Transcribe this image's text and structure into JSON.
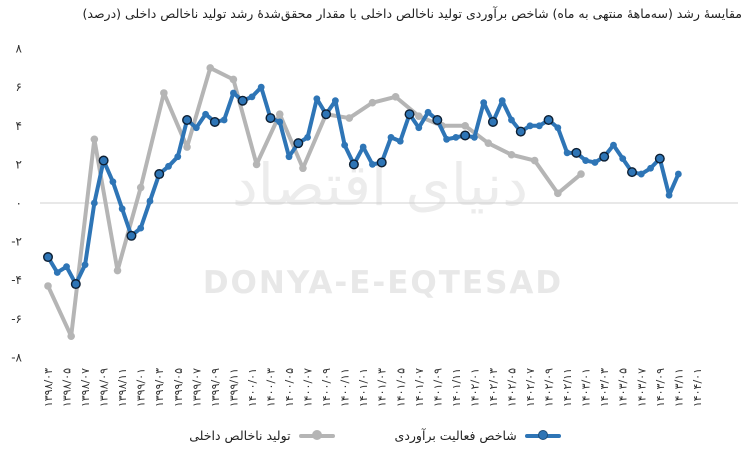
{
  "chart_data": {
    "type": "line",
    "title": "مقایسهٔ رشد (سه‌ماههٔ منتهی به ماه) شاخص برآوردی تولید ناخالص داخلی با مقدار محقق‌شدهٔ رشد تولید ناخالص داخلی (درصد)",
    "watermark": "DONYA-E-EQTESAD",
    "watermark_fa": "دنیای اقتصاد",
    "ylim": [
      -8,
      8
    ],
    "yticks": [
      -8,
      -6,
      -4,
      -2,
      0,
      2,
      4,
      6,
      8
    ],
    "ytick_labels": [
      "-۸",
      "-۶",
      "-۴",
      "-۲",
      "۰",
      "۲",
      "۴",
      "۶",
      "۸"
    ],
    "x_labels": [
      "۱۳۹۸/۰۳",
      "۱۳۹۸/۰۵",
      "۱۳۹۸/۰۷",
      "۱۳۹۸/۰۹",
      "۱۳۹۸/۱۱",
      "۱۳۹۹/۰۱",
      "۱۳۹۹/۰۳",
      "۱۳۹۹/۰۵",
      "۱۳۹۹/۰۷",
      "۱۳۹۹/۰۹",
      "۱۳۹۹/۱۱",
      "۱۴۰۰/۰۱",
      "۱۴۰۰/۰۳",
      "۱۴۰۰/۰۵",
      "۱۴۰۰/۰۷",
      "۱۴۰۰/۰۹",
      "۱۴۰۰/۱۱",
      "۱۴۰۱/۰۱",
      "۱۴۰۱/۰۳",
      "۱۴۰۱/۰۵",
      "۱۴۰۱/۰۷",
      "۱۴۰۱/۰۹",
      "۱۴۰۱/۱۱",
      "۱۴۰۲/۰۱",
      "۱۴۰۲/۰۳",
      "۱۴۰۲/۰۵",
      "۱۴۰۲/۰۷",
      "۱۴۰۲/۰۹",
      "۱۴۰۲/۱۱",
      "۱۴۰۳/۰۱",
      "۱۴۰۳/۰۳",
      "۱۴۰۳/۰۵",
      "۱۴۰۳/۰۷",
      "۱۴۰۳/۰۹",
      "۱۴۰۳/۱۱",
      "۱۴۰۴/۰۱"
    ],
    "series": [
      {
        "name": "تولید ناخالص داخلی",
        "color": "#b5b5b5",
        "points": [
          [
            0,
            -4.3
          ],
          [
            2.5,
            -6.9
          ],
          [
            5,
            3.3
          ],
          [
            7.5,
            -3.5
          ],
          [
            10,
            0.8
          ],
          [
            12.5,
            5.7
          ],
          [
            15,
            2.9
          ],
          [
            17.5,
            7
          ],
          [
            20,
            6.4
          ],
          [
            22.5,
            2
          ],
          [
            25,
            4.6
          ],
          [
            27.5,
            1.8
          ],
          [
            30,
            4.6
          ],
          [
            32.5,
            4.4
          ],
          [
            35,
            5.2
          ],
          [
            37.5,
            5.5
          ],
          [
            40,
            4.5
          ],
          [
            42.5,
            4
          ],
          [
            45,
            4
          ],
          [
            47.5,
            3.1
          ],
          [
            50,
            2.5
          ],
          [
            52.5,
            2.2
          ],
          [
            55,
            0.5
          ],
          [
            57.5,
            1.5
          ]
        ]
      },
      {
        "name": "شاخص فعالیت برآوردی",
        "color": "#2e75b6",
        "values": [
          -2.8,
          -3.6,
          -3.3,
          -4.2,
          -3.2,
          0,
          2.2,
          1.1,
          -0.3,
          -1.7,
          -1.3,
          0.1,
          1.5,
          1.9,
          2.4,
          4.3,
          3.9,
          4.6,
          4.2,
          4.3,
          5.7,
          5.3,
          5.5,
          6,
          4.4,
          4.2,
          2.4,
          3.1,
          3.4,
          5.4,
          4.6,
          5.3,
          3,
          2,
          2.9,
          2,
          2.1,
          3.4,
          3.2,
          4.6,
          3.9,
          4.7,
          4.3,
          3.3,
          3.4,
          3.5,
          3.4,
          5.2,
          4.2,
          5.3,
          4.3,
          3.7,
          4,
          4,
          4.3,
          3.9,
          2.6,
          2.6,
          2.2,
          2.1,
          2.4,
          3,
          2.3,
          1.6,
          1.5,
          1.8,
          2.3,
          0.4,
          1.5
        ],
        "highlight": [
          0,
          3,
          6,
          9,
          12,
          15,
          18,
          21,
          24,
          27,
          30,
          33,
          36,
          39,
          42,
          45,
          48,
          51,
          54,
          57,
          60,
          63,
          66
        ]
      }
    ],
    "legend": [
      "شاخص فعالیت برآوردی",
      "تولید ناخالص داخلی"
    ]
  }
}
